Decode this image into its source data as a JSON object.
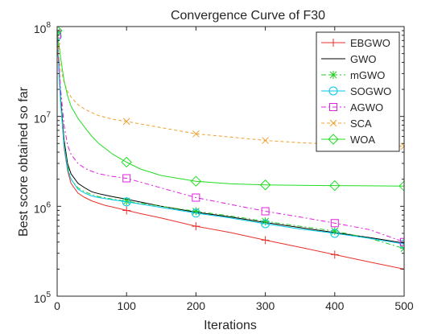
{
  "chart_data": {
    "type": "line",
    "title": "Convergence Curve of F30",
    "xlabel": "Iterations",
    "ylabel": "Best score obtained so far",
    "xlim": [
      0,
      500
    ],
    "ylim": [
      100000,
      100000000
    ],
    "yscale": "log",
    "x_ticks": [
      0,
      100,
      200,
      300,
      400,
      500
    ],
    "x_tick_labels": [
      "0",
      "100",
      "200",
      "300",
      "400",
      "500"
    ],
    "y_ticks": [
      100000,
      1000000,
      10000000,
      100000000
    ],
    "y_tick_labels": [
      {
        "base": "10",
        "exp": "5"
      },
      {
        "base": "10",
        "exp": "6"
      },
      {
        "base": "10",
        "exp": "7"
      },
      {
        "base": "10",
        "exp": "8"
      }
    ],
    "grid": false,
    "legend_position": "top-right",
    "series": [
      {
        "name": "EBGWO",
        "color": "#e8312b",
        "marker": "plus",
        "dash": "",
        "x": [
          0,
          5,
          10,
          15,
          20,
          30,
          40,
          50,
          60,
          70,
          80,
          100,
          120,
          150,
          200,
          250,
          300,
          350,
          400,
          450,
          500
        ],
        "y": [
          85000000,
          15000000,
          4500000,
          2500000,
          1800000,
          1400000,
          1250000,
          1150000,
          1080000,
          1020000,
          980000,
          900000,
          830000,
          740000,
          600000,
          510000,
          420000,
          350000,
          290000,
          240000,
          200000
        ]
      },
      {
        "name": "GWO",
        "color": "#000000",
        "marker": "none",
        "dash": "",
        "x": [
          0,
          5,
          10,
          15,
          20,
          30,
          40,
          50,
          60,
          80,
          100,
          150,
          200,
          250,
          300,
          350,
          400,
          450,
          500
        ],
        "y": [
          80000000,
          16000000,
          5500000,
          3000000,
          2300000,
          1800000,
          1600000,
          1450000,
          1380000,
          1280000,
          1200000,
          1000000,
          860000,
          760000,
          660000,
          580000,
          510000,
          450000,
          390000
        ]
      },
      {
        "name": "mGWO",
        "color": "#22cc22",
        "marker": "asterisk",
        "dash": "6,3,2,3",
        "x": [
          0,
          5,
          10,
          15,
          20,
          30,
          40,
          50,
          60,
          80,
          100,
          150,
          200,
          250,
          300,
          350,
          400,
          450,
          500
        ],
        "y": [
          88000000,
          15000000,
          5000000,
          2800000,
          2000000,
          1600000,
          1450000,
          1350000,
          1280000,
          1200000,
          1140000,
          1000000,
          880000,
          780000,
          680000,
          600000,
          530000,
          440000,
          340000
        ]
      },
      {
        "name": "SOGWO",
        "color": "#00c8e8",
        "marker": "circle",
        "dash": "",
        "x": [
          0,
          5,
          10,
          15,
          20,
          30,
          40,
          50,
          60,
          80,
          100,
          150,
          200,
          250,
          300,
          350,
          400,
          450,
          500
        ],
        "y": [
          78000000,
          14000000,
          4800000,
          2600000,
          2000000,
          1550000,
          1400000,
          1300000,
          1250000,
          1180000,
          1120000,
          970000,
          840000,
          740000,
          640000,
          560000,
          500000,
          440000,
          380000
        ]
      },
      {
        "name": "AGWO",
        "color": "#e01fe0",
        "marker": "square",
        "dash": "6,3,2,3",
        "x": [
          0,
          5,
          10,
          15,
          20,
          30,
          40,
          50,
          60,
          80,
          100,
          150,
          200,
          250,
          300,
          350,
          400,
          450,
          500
        ],
        "y": [
          82000000,
          20000000,
          8000000,
          4800000,
          3800000,
          3000000,
          2650000,
          2450000,
          2300000,
          2150000,
          2050000,
          1600000,
          1250000,
          1050000,
          880000,
          760000,
          650000,
          550000,
          400000
        ]
      },
      {
        "name": "SCA",
        "color": "#f0a030",
        "marker": "cross",
        "dash": "4,3",
        "x": [
          0,
          5,
          10,
          15,
          20,
          30,
          40,
          50,
          60,
          80,
          100,
          150,
          200,
          250,
          300,
          350,
          400,
          450,
          500
        ],
        "y": [
          60000000,
          35000000,
          24000000,
          19000000,
          16500000,
          13500000,
          12000000,
          11000000,
          10200000,
          9300000,
          8800000,
          7500000,
          6400000,
          5900000,
          5400000,
          5100000,
          4900000,
          4750000,
          4650000
        ]
      },
      {
        "name": "WOA",
        "color": "#22dd22",
        "marker": "diamond",
        "dash": "",
        "x": [
          0,
          5,
          10,
          15,
          20,
          30,
          40,
          50,
          60,
          80,
          100,
          120,
          150,
          200,
          250,
          300,
          350,
          400,
          450,
          500
        ],
        "y": [
          90000000,
          45000000,
          25000000,
          17000000,
          13000000,
          9500000,
          7500000,
          6000000,
          5000000,
          3800000,
          3100000,
          2600000,
          2200000,
          1900000,
          1780000,
          1730000,
          1710000,
          1700000,
          1690000,
          1680000
        ]
      }
    ]
  }
}
